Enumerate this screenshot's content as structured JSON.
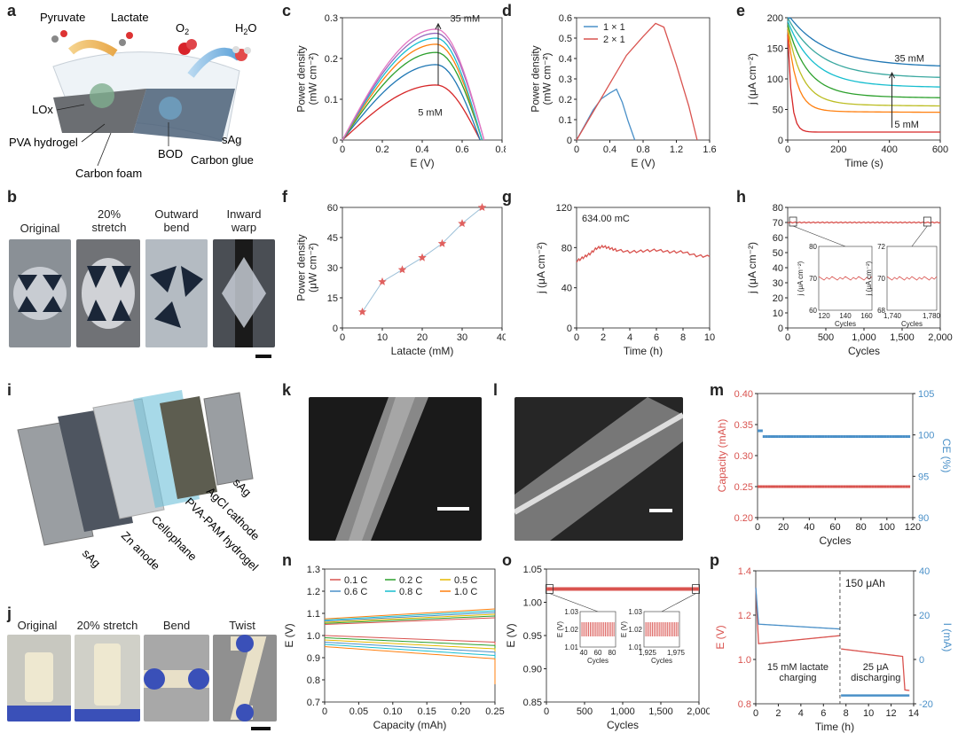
{
  "panel_letters": {
    "a": "a",
    "b": "b",
    "c": "c",
    "d": "d",
    "e": "e",
    "f": "f",
    "g": "g",
    "h": "h",
    "i": "i",
    "j": "j",
    "k": "k",
    "l": "l",
    "m": "m",
    "n": "n",
    "o": "o",
    "p": "p"
  },
  "panel_a": {
    "labels": {
      "pyruvate": "Pyruvate",
      "lactate": "Lactate",
      "o2": "O",
      "o2sub": "2",
      "h2o": "H",
      "h2osub": "2",
      "h2otail": "O",
      "lox": "LOx",
      "pva": "PVA hydrogel",
      "carbon_foam": "Carbon foam",
      "bod": "BOD",
      "carbon_glue": "Carbon glue",
      "sag": "sAg"
    }
  },
  "panel_b": {
    "captions": [
      "Original",
      "20%\nstretch",
      "Outward\nbend",
      "Inward\nwarp"
    ]
  },
  "panel_i": {
    "labels": {
      "sag1": "sAg",
      "zn": "Zn anode",
      "cellophane": "Cellophane",
      "pva_pam": "PVA-PAM hydrogel",
      "agcl": "AgCl cathode",
      "sag2": "sAg"
    }
  },
  "panel_j": {
    "captions": [
      "Original",
      "20% stretch",
      "Bend",
      "Twist"
    ]
  },
  "chart_data": [
    {
      "id": "c",
      "type": "line",
      "xlabel": "E (V)",
      "ylabel": "Power density\n(mW cm⁻²)",
      "xlim": [
        0,
        0.8
      ],
      "ylim": [
        0,
        0.3
      ],
      "xticks": [
        "0",
        "0.2",
        "0.4",
        "0.6",
        "0.8"
      ],
      "yticks": [
        "0",
        "0.1",
        "0.2",
        "0.3"
      ],
      "annotations": [
        "35 mM",
        "5 mM"
      ],
      "series": [
        {
          "color": "#d62728",
          "peak": 0.135,
          "end": 0.69
        },
        {
          "color": "#1f77b4",
          "peak": 0.185,
          "end": 0.69
        },
        {
          "color": "#2ca02c",
          "peak": 0.215,
          "end": 0.7
        },
        {
          "color": "#ff7f0e",
          "peak": 0.235,
          "end": 0.7
        },
        {
          "color": "#17becf",
          "peak": 0.25,
          "end": 0.7
        },
        {
          "color": "#9467bd",
          "peak": 0.262,
          "end": 0.71
        },
        {
          "color": "#e377c2",
          "peak": 0.272,
          "end": 0.71
        }
      ],
      "peak_x": 0.47
    },
    {
      "id": "d",
      "type": "line",
      "xlabel": "E (V)",
      "ylabel": "Power density\n(mW cm⁻²)",
      "xlim": [
        0,
        1.6
      ],
      "ylim": [
        0,
        0.65
      ],
      "xticks": [
        "0",
        "0.4",
        "0.8",
        "1.2",
        "1.6"
      ],
      "yticks": [
        "0",
        "0.1",
        "0.2",
        "0.3",
        "0.4",
        "0.5",
        "0.6"
      ],
      "legend": [
        "1 × 1",
        "2 × 1"
      ],
      "series": [
        {
          "name": "1 × 1",
          "color": "#4a90c8",
          "x": [
            0,
            0.1,
            0.2,
            0.3,
            0.4,
            0.48,
            0.55,
            0.62,
            0.7
          ],
          "y": [
            0,
            0.08,
            0.16,
            0.22,
            0.25,
            0.27,
            0.2,
            0.1,
            0
          ]
        },
        {
          "name": "2 × 1",
          "color": "#d9534f",
          "x": [
            0,
            0.2,
            0.4,
            0.6,
            0.8,
            0.95,
            1.05,
            1.2,
            1.35,
            1.45
          ],
          "y": [
            0,
            0.15,
            0.3,
            0.45,
            0.55,
            0.62,
            0.6,
            0.4,
            0.18,
            0
          ]
        }
      ]
    },
    {
      "id": "e",
      "type": "line",
      "xlabel": "Time (s)",
      "ylabel": "j (μA cm⁻²)",
      "xlim": [
        0,
        600
      ],
      "ylim": [
        0,
        200
      ],
      "xticks": [
        "0",
        "200",
        "400",
        "600"
      ],
      "yticks": [
        "0",
        "50",
        "100",
        "150",
        "200"
      ],
      "annotations": [
        "35 mM",
        "5 mM"
      ],
      "series": [
        {
          "color": "#d62728",
          "final": 13
        },
        {
          "color": "#ff7f0e",
          "final": 45
        },
        {
          "color": "#bcbd22",
          "final": 55
        },
        {
          "color": "#2ca02c",
          "final": 68
        },
        {
          "color": "#17becf",
          "final": 85
        },
        {
          "color": "#3aa8a0",
          "final": 100
        },
        {
          "color": "#1f77b4",
          "final": 118
        }
      ]
    },
    {
      "id": "f",
      "type": "scatter",
      "xlabel": "Latacte (mM)",
      "ylabel": "Power density\n(μW cm⁻²)",
      "xlim": [
        0,
        40
      ],
      "ylim": [
        0,
        60
      ],
      "xticks": [
        "0",
        "10",
        "20",
        "30",
        "40"
      ],
      "yticks": [
        "0",
        "15",
        "30",
        "45",
        "60"
      ],
      "x": [
        5,
        10,
        15,
        20,
        25,
        30,
        35
      ],
      "y": [
        8,
        23,
        29,
        35,
        42,
        52,
        60
      ]
    },
    {
      "id": "g",
      "type": "line",
      "xlabel": "Time (h)",
      "ylabel": "j (μA cm⁻²)",
      "xlim": [
        0,
        10
      ],
      "ylim": [
        0,
        130
      ],
      "xticks": [
        "0",
        "2",
        "4",
        "6",
        "8",
        "10"
      ],
      "yticks": [
        "0",
        "40",
        "80",
        "120"
      ],
      "annotation": "634.00 mC",
      "x": [
        0,
        0.5,
        1,
        1.5,
        2,
        2.5,
        3,
        4,
        5,
        6,
        7,
        8,
        9,
        10
      ],
      "y": [
        72,
        76,
        80,
        86,
        88,
        86,
        84,
        82,
        83,
        84,
        82,
        82,
        78,
        77
      ]
    },
    {
      "id": "h",
      "type": "line",
      "xlabel": "Cycles",
      "ylabel": "j (μA cm⁻²)",
      "xlim": [
        0,
        2000
      ],
      "ylim": [
        0,
        80
      ],
      "xticks": [
        "0",
        "500",
        "1,000",
        "1,500",
        "2,000"
      ],
      "yticks": [
        "0",
        "10",
        "20",
        "30",
        "40",
        "50",
        "60",
        "70",
        "80"
      ],
      "value": 70,
      "insets": [
        {
          "xlabel": "Cycles",
          "ylabel": "j (μA cm⁻²)",
          "xticks": [
            "120",
            "140",
            "160"
          ],
          "yticks": [
            "60",
            "70",
            "80"
          ]
        },
        {
          "xlabel": "Cycles",
          "ylabel": "j (μA cm⁻²)",
          "xticks": [
            "1,740",
            "1,780"
          ],
          "yticks": [
            "68",
            "70",
            "72"
          ]
        }
      ]
    },
    {
      "id": "m",
      "type": "scatter",
      "xlabel": "Cycles",
      "ylabel": "Capacity (mAh)",
      "ylabel2": "CE (%)",
      "xlim": [
        0,
        120
      ],
      "ylim": [
        0.2,
        0.4
      ],
      "ylim2": [
        90,
        105
      ],
      "xticks": [
        "0",
        "20",
        "40",
        "60",
        "80",
        "100",
        "120"
      ],
      "yticks": [
        "0.20",
        "0.25",
        "0.30",
        "0.35",
        "0.40"
      ],
      "yticks2": [
        "90",
        "95",
        "100",
        "105"
      ],
      "capacity": 0.25,
      "ce": 100
    },
    {
      "id": "n",
      "type": "line",
      "xlabel": "Capacity (mAh)",
      "ylabel": "E (V)",
      "xlim": [
        0,
        0.25
      ],
      "ylim": [
        0.7,
        1.3
      ],
      "xticks": [
        "0",
        "0.05",
        "0.10",
        "0.15",
        "0.20",
        "0.25"
      ],
      "yticks": [
        "0.7",
        "0.8",
        "0.9",
        "1.0",
        "1.1",
        "1.2",
        "1.3"
      ],
      "legend": [
        "0.1 C",
        "0.2 C",
        "0.5 C",
        "0.6 C",
        "0.8 C",
        "1.0 C"
      ],
      "colors": [
        "#d9534f",
        "#2ca02c",
        "#e6b800",
        "#4a90c8",
        "#17becf",
        "#ff7f0e"
      ]
    },
    {
      "id": "o",
      "type": "line",
      "xlabel": "Cycles",
      "ylabel": "E (V)",
      "xlim": [
        0,
        2000
      ],
      "ylim": [
        0.85,
        1.05
      ],
      "xticks": [
        "0",
        "500",
        "1,000",
        "1,500",
        "2,000"
      ],
      "yticks": [
        "0.85",
        "0.90",
        "0.95",
        "1.00",
        "1.05"
      ],
      "value": 1.02,
      "insets": [
        {
          "xlabel": "Cycles",
          "ylabel": "E (V)",
          "xticks": [
            "40",
            "60",
            "80"
          ],
          "yticks": [
            "1.01",
            "1.02",
            "1.03"
          ]
        },
        {
          "xlabel": "Cycles",
          "ylabel": "E (V)",
          "xticks": [
            "1,925",
            "1,975"
          ],
          "yticks": [
            "1.01",
            "1.02",
            "1.03"
          ]
        }
      ]
    },
    {
      "id": "p",
      "type": "line",
      "xlabel": "Time (h)",
      "ylabel": "E (V)",
      "ylabel2": "I (mA)",
      "xlim": [
        0,
        15
      ],
      "ylim": [
        0.7,
        1.5
      ],
      "ylim2": [
        -30,
        50
      ],
      "xticks": [
        "0",
        "2",
        "4",
        "6",
        "8",
        "10",
        "12",
        "14"
      ],
      "yticks": [
        "0.8",
        "1.0",
        "1.2",
        "1.4"
      ],
      "yticks2": [
        "-20",
        "0",
        "20",
        "40"
      ],
      "annotations": [
        "150 μAh",
        "15 mM lactate\ncharging",
        "25 μA\ndischarging"
      ]
    }
  ]
}
